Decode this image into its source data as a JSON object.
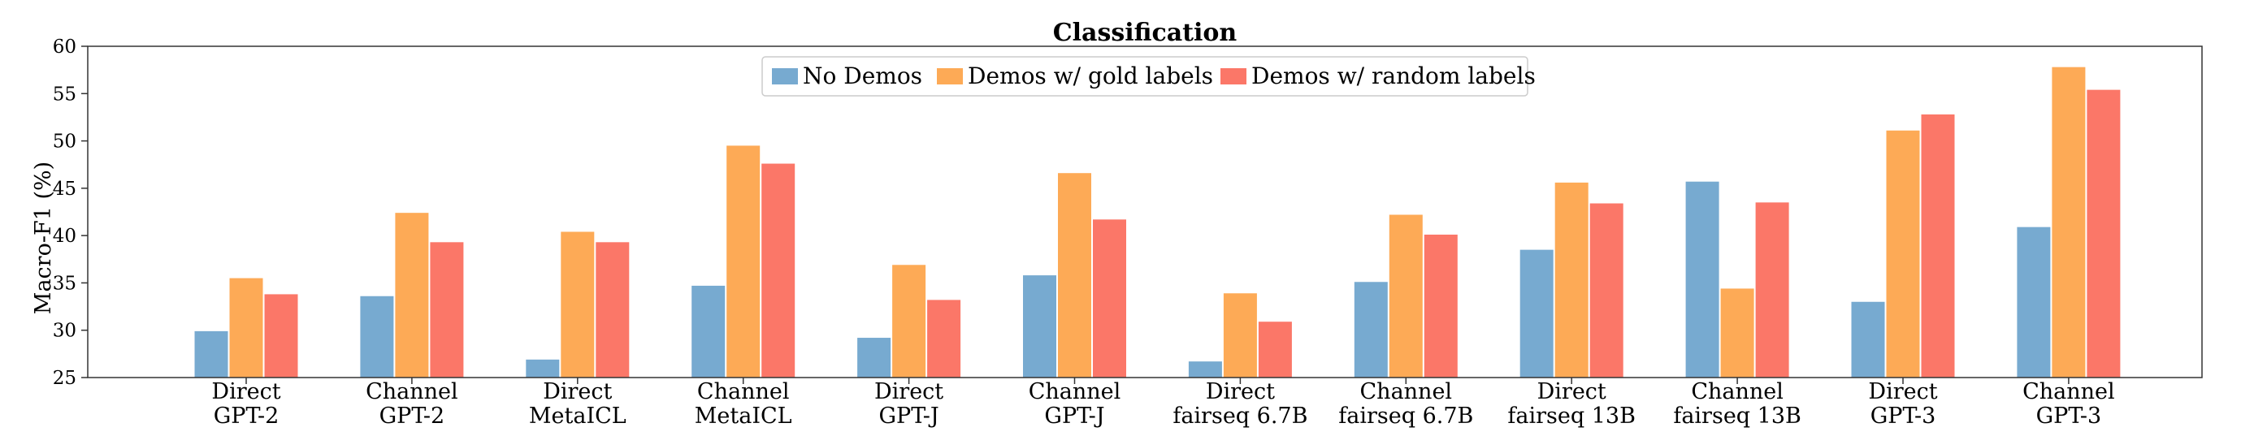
{
  "chart_data": {
    "type": "bar",
    "title": "Classification",
    "xlabel": "",
    "ylabel": "Macro-F1 (%)",
    "ylim": [
      25,
      60
    ],
    "yticks": [
      "25",
      "30",
      "35",
      "40",
      "45",
      "50",
      "55",
      "60"
    ],
    "categories": [
      [
        "Direct",
        "GPT-2"
      ],
      [
        "Channel",
        "GPT-2"
      ],
      [
        "Direct",
        "MetaICL"
      ],
      [
        "Channel",
        "MetaICL"
      ],
      [
        "Direct",
        "GPT-J"
      ],
      [
        "Channel",
        "GPT-J"
      ],
      [
        "Direct",
        "fairseq 6.7B"
      ],
      [
        "Channel",
        "fairseq 6.7B"
      ],
      [
        "Direct",
        "fairseq 13B"
      ],
      [
        "Channel",
        "fairseq 13B"
      ],
      [
        "Direct",
        "GPT-3"
      ],
      [
        "Channel",
        "GPT-3"
      ]
    ],
    "series": [
      {
        "name": "No Demos",
        "color": "#77aad0",
        "values": [
          29.9,
          33.6,
          26.9,
          34.7,
          29.2,
          35.8,
          26.7,
          35.1,
          38.5,
          45.7,
          33.0,
          40.9
        ]
      },
      {
        "name": "Demos w/ gold labels",
        "color": "#fdaa56",
        "values": [
          35.5,
          42.4,
          40.4,
          49.5,
          36.9,
          46.6,
          33.9,
          42.2,
          45.6,
          34.4,
          51.1,
          57.8
        ]
      },
      {
        "name": "Demos w/ random labels",
        "color": "#fb7768",
        "values": [
          33.8,
          39.3,
          39.3,
          47.6,
          33.2,
          41.7,
          30.9,
          40.1,
          43.4,
          43.5,
          52.8,
          55.4
        ]
      }
    ],
    "legend_position": "upper-center",
    "grid": false
  }
}
